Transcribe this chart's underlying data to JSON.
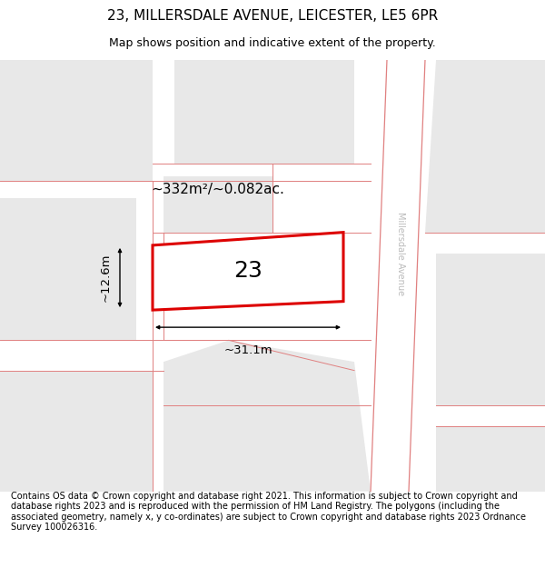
{
  "title": "23, MILLERSDALE AVENUE, LEICESTER, LE5 6PR",
  "subtitle": "Map shows position and indicative extent of the property.",
  "footer": "Contains OS data © Crown copyright and database right 2021. This information is subject to Crown copyright and database rights 2023 and is reproduced with the permission of HM Land Registry. The polygons (including the associated geometry, namely x, y co-ordinates) are subject to Crown copyright and database rights 2023 Ordnance Survey 100026316.",
  "area_label": "~332m²/~0.082ac.",
  "width_label": "~31.1m",
  "height_label": "~12.6m",
  "plot_number": "23",
  "map_bg": "#f5f5f5",
  "plot_fill": "#ffffff",
  "plot_edge": "#dd0000",
  "road_line_color": "#e08080",
  "building_fill": "#e8e8e8",
  "street_label": "Millersdale Avenue",
  "street_label_color": "#bbbbbb",
  "title_fontsize": 11,
  "subtitle_fontsize": 9,
  "footer_fontsize": 7
}
